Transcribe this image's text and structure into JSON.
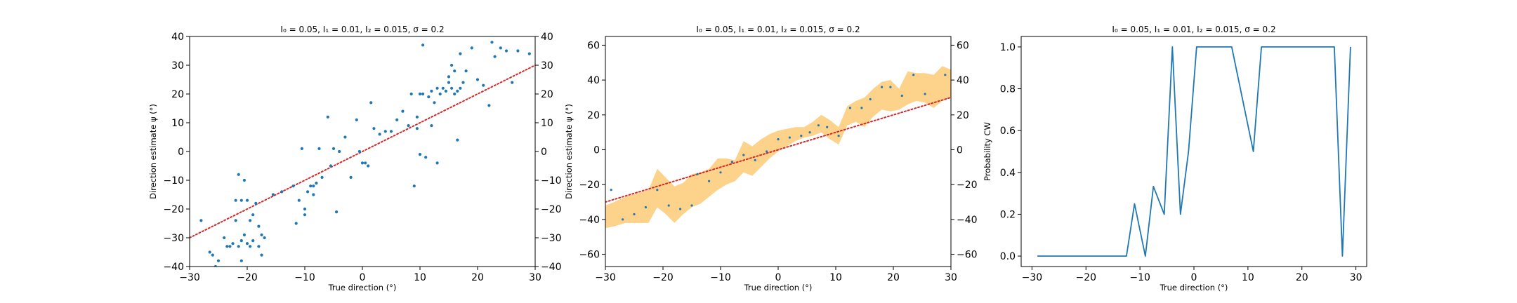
{
  "chart_data": [
    {
      "type": "scatter",
      "title": "I₀ = 0.05, I₁ = 0.01, I₂ = 0.015, σ = 0.2",
      "xlabel": "True direction (°)",
      "ylabel": "Direction estimate ψ (°)",
      "xlim": [
        -30,
        30
      ],
      "ylim": [
        -40,
        40
      ],
      "xticks": [
        "−30",
        "−20",
        "−10",
        "0",
        "10",
        "20",
        "30"
      ],
      "yticks": [
        "−40",
        "−30",
        "−20",
        "−10",
        "0",
        "10",
        "20",
        "30",
        "40"
      ],
      "right_yticks": [
        "−40",
        "−30",
        "−20",
        "−10",
        "0",
        "10",
        "20",
        "30",
        "40"
      ],
      "reference_line": {
        "style": "dotted",
        "color": "#d62728",
        "x": [
          -30,
          30
        ],
        "y": [
          -30,
          30
        ]
      },
      "point_color": "#1f77b4",
      "points": [
        [
          -28,
          -24
        ],
        [
          -26.5,
          -35
        ],
        [
          -26,
          -36
        ],
        [
          -25.5,
          -40
        ],
        [
          -25,
          -38
        ],
        [
          -24,
          -30
        ],
        [
          -23.5,
          -33
        ],
        [
          -23,
          -33
        ],
        [
          -22.5,
          -32
        ],
        [
          -22,
          -24
        ],
        [
          -22,
          -17
        ],
        [
          -21.5,
          -8
        ],
        [
          -21.5,
          -33
        ],
        [
          -21,
          -38
        ],
        [
          -21,
          -31
        ],
        [
          -21,
          -17
        ],
        [
          -20.5,
          -10
        ],
        [
          -20.5,
          -29
        ],
        [
          -20,
          -32
        ],
        [
          -20,
          -17
        ],
        [
          -19.5,
          -24
        ],
        [
          -19.5,
          -33
        ],
        [
          -19,
          -31
        ],
        [
          -19,
          -22
        ],
        [
          -18.5,
          -18
        ],
        [
          -18,
          -26
        ],
        [
          -18,
          -33
        ],
        [
          -17.5,
          -29
        ],
        [
          -17.5,
          -36
        ],
        [
          -17,
          -30
        ],
        [
          -15.5,
          -15
        ],
        [
          -14,
          -14
        ],
        [
          -12,
          -12
        ],
        [
          -11.5,
          -25
        ],
        [
          -11,
          -17
        ],
        [
          -10.5,
          1
        ],
        [
          -10,
          -20
        ],
        [
          -10,
          -22
        ],
        [
          -9.5,
          -14
        ],
        [
          -9,
          -12
        ],
        [
          -8.5,
          -12
        ],
        [
          -8.5,
          -15
        ],
        [
          -8,
          -11
        ],
        [
          -7.5,
          1
        ],
        [
          -7,
          -9
        ],
        [
          -6,
          12
        ],
        [
          -5.5,
          -5
        ],
        [
          -5,
          1
        ],
        [
          -4.5,
          -21
        ],
        [
          -4,
          0
        ],
        [
          -3,
          5
        ],
        [
          -2,
          -9
        ],
        [
          -1,
          11
        ],
        [
          -0.5,
          0
        ],
        [
          0,
          -4
        ],
        [
          0.5,
          -4
        ],
        [
          1,
          -5
        ],
        [
          1.5,
          17
        ],
        [
          2,
          8
        ],
        [
          3,
          6
        ],
        [
          4,
          7
        ],
        [
          5,
          7
        ],
        [
          6,
          11
        ],
        [
          7,
          14
        ],
        [
          8,
          9
        ],
        [
          8.5,
          20
        ],
        [
          9,
          -12
        ],
        [
          9.5,
          8
        ],
        [
          9.5,
          12
        ],
        [
          10,
          20
        ],
        [
          10,
          -1
        ],
        [
          10.5,
          20
        ],
        [
          10.5,
          37
        ],
        [
          11,
          -2
        ],
        [
          11.5,
          19
        ],
        [
          12,
          21
        ],
        [
          12,
          9
        ],
        [
          12.5,
          17
        ],
        [
          13,
          -4
        ],
        [
          13,
          22
        ],
        [
          13.5,
          20
        ],
        [
          14,
          22
        ],
        [
          14.5,
          21
        ],
        [
          15,
          24
        ],
        [
          15,
          26
        ],
        [
          15.5,
          22
        ],
        [
          15.5,
          30
        ],
        [
          16,
          28
        ],
        [
          16,
          20
        ],
        [
          16.5,
          4
        ],
        [
          16.5,
          21
        ],
        [
          17,
          34
        ],
        [
          17,
          22
        ],
        [
          17.5,
          24
        ],
        [
          18,
          28
        ],
        [
          19,
          36
        ],
        [
          20,
          25
        ],
        [
          21,
          23
        ],
        [
          22,
          16
        ],
        [
          22.5,
          38
        ],
        [
          23,
          33
        ],
        [
          24,
          36
        ],
        [
          25,
          35
        ],
        [
          26,
          24
        ],
        [
          27,
          35
        ],
        [
          29,
          34
        ]
      ]
    },
    {
      "type": "scatter",
      "title": "I₀ = 0.05, I₁ = 0.01, I₂ = 0.015, σ = 0.2",
      "xlabel": "True direction (°)",
      "ylabel": "Direction estimate ψ (°)",
      "xlim": [
        -30,
        30
      ],
      "ylim": [
        -67,
        65
      ],
      "xticks": [
        "−30",
        "−20",
        "−10",
        "0",
        "10",
        "20",
        "30"
      ],
      "yticks": [
        "−60",
        "−40",
        "−20",
        "0",
        "20",
        "40",
        "60"
      ],
      "right_yticks": [
        "−60",
        "−40",
        "−20",
        "0",
        "20",
        "40",
        "60"
      ],
      "reference_line": {
        "style": "dotted",
        "color": "#d62728",
        "x": [
          -30,
          30
        ],
        "y": [
          -30,
          30
        ]
      },
      "band_color": "#fdd28a",
      "band": {
        "x": [
          -30,
          -28.5,
          -26.5,
          -24.5,
          -22.5,
          -21,
          -19.5,
          -18,
          -16.5,
          -15,
          -13.5,
          -12,
          -10.5,
          -9,
          -7.5,
          -6,
          -4.5,
          -3,
          -1.5,
          0,
          1.5,
          3,
          4.5,
          6,
          7.5,
          9,
          10.5,
          12,
          13.5,
          15,
          16.5,
          18,
          19.5,
          21,
          22.5,
          24,
          25.5,
          27,
          28.5,
          30
        ],
        "lower": [
          -45,
          -44,
          -42,
          -42,
          -42,
          -33,
          -37,
          -42,
          -37,
          -33,
          -31,
          -27,
          -23,
          -20,
          -18,
          -13,
          -15,
          -10,
          -5,
          -1,
          2,
          5,
          7,
          8,
          10,
          6,
          3,
          14,
          16,
          13,
          19,
          23,
          22,
          23,
          26,
          28,
          27,
          24,
          28,
          30
        ],
        "upper": [
          -32,
          -30,
          -27,
          -25,
          -23,
          -11,
          -16,
          -21,
          -19,
          -14,
          -13,
          -11,
          -5,
          -5,
          -6,
          5,
          2,
          6,
          9,
          11,
          12,
          13,
          13,
          16,
          20,
          17,
          13,
          25,
          28,
          30,
          35,
          39,
          40,
          35,
          45,
          44,
          44,
          43,
          48,
          46
        ]
      },
      "point_color": "#1f77b4",
      "points": [
        [
          -29,
          -23
        ],
        [
          -27,
          -40
        ],
        [
          -25,
          -37
        ],
        [
          -23,
          -33
        ],
        [
          -21,
          -23
        ],
        [
          -19,
          -32
        ],
        [
          -17,
          -34
        ],
        [
          -15,
          -32
        ],
        [
          -14,
          -14
        ],
        [
          -12,
          -18
        ],
        [
          -10,
          -13
        ],
        [
          -8,
          -7
        ],
        [
          -6,
          -3
        ],
        [
          -4,
          -6
        ],
        [
          -2,
          -1
        ],
        [
          0,
          6
        ],
        [
          2,
          7
        ],
        [
          4,
          8
        ],
        [
          5.5,
          10
        ],
        [
          7,
          14
        ],
        [
          8.5,
          13
        ],
        [
          10.5,
          8
        ],
        [
          12.5,
          24
        ],
        [
          14.5,
          24
        ],
        [
          16,
          29
        ],
        [
          18,
          36
        ],
        [
          19.5,
          36
        ],
        [
          21.5,
          31
        ],
        [
          23.5,
          43
        ],
        [
          25.5,
          32
        ],
        [
          29,
          43
        ]
      ]
    },
    {
      "type": "line",
      "title": "I₀ = 0.05, I₁ = 0.01, I₂ = 0.015, σ = 0.2",
      "xlabel": "True direction (°)",
      "ylabel": "Probability CW",
      "xlim": [
        -32,
        32
      ],
      "ylim": [
        -0.05,
        1.05
      ],
      "xticks": [
        "−30",
        "−20",
        "−10",
        "0",
        "10",
        "20",
        "30"
      ],
      "yticks": [
        "0.0",
        "0.2",
        "0.4",
        "0.6",
        "0.8",
        "1.0"
      ],
      "line_color": "#1f77b4",
      "x": [
        -29,
        -12.5,
        -11,
        -9,
        -7.5,
        -5.5,
        -4,
        -2.5,
        -1,
        0.5,
        2,
        7,
        11,
        12.5,
        26,
        27.5,
        29
      ],
      "y": [
        0,
        0,
        0.25,
        0,
        0.333,
        0.2,
        1.0,
        0.2,
        0.5,
        1.0,
        1.0,
        1.0,
        0.5,
        1.0,
        1.0,
        0,
        1.0
      ]
    }
  ]
}
